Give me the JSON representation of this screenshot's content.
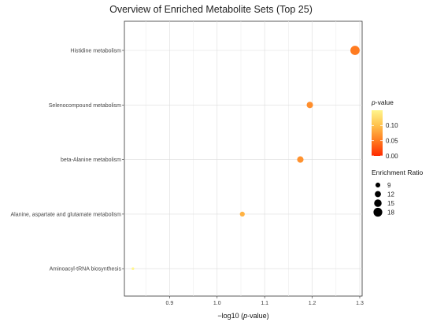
{
  "chart_data": {
    "type": "scatter",
    "title": "Overview of Enriched Metabolite Sets (Top 25)",
    "xlabel_prefix": "−log10 (",
    "xlabel_italic": "p",
    "xlabel_suffix": "-value)",
    "xlim": [
      0.805,
      1.305
    ],
    "xticks": [
      0.9,
      1.0,
      1.1,
      1.2,
      1.3
    ],
    "xtick_labels": [
      "0.9",
      "1.0",
      "1.1",
      "1.2",
      "1.3"
    ],
    "grid": true,
    "categories": [
      "Histidine metabolism",
      "Selenocompound metabolism",
      "beta-Alanine metabolism",
      "Alanine, aspartate and glutamate metabolism",
      "Aminoacyl-tRNA biosynthesis"
    ],
    "points": [
      {
        "category": "Histidine metabolism",
        "x": 1.29,
        "p_value": 0.051,
        "enrichment_ratio": 19
      },
      {
        "category": "Selenocompound metabolism",
        "x": 1.195,
        "p_value": 0.064,
        "enrichment_ratio": 12.5
      },
      {
        "category": "beta-Alanine metabolism",
        "x": 1.175,
        "p_value": 0.067,
        "enrichment_ratio": 12.5
      },
      {
        "category": "Alanine, aspartate and glutamate metabolism",
        "x": 1.053,
        "p_value": 0.089,
        "enrichment_ratio": 9.2
      },
      {
        "category": "Aminoacyl-tRNA biosynthesis",
        "x": 0.823,
        "p_value": 0.15,
        "enrichment_ratio": 4
      }
    ],
    "color_legend": {
      "title_italic": "p",
      "title_suffix": "-value",
      "range": [
        0.0,
        0.15
      ],
      "ticks": [
        0.0,
        0.05,
        0.1
      ],
      "tick_labels": [
        "0.00",
        "0.05",
        "0.10"
      ],
      "colors": [
        "#ff2a00",
        "#ff7a1f",
        "#ffc24d",
        "#fff58c"
      ]
    },
    "size_legend": {
      "title": "Enrichment Ratio",
      "values": [
        9,
        12,
        15,
        18
      ],
      "labels": [
        "9",
        "12",
        "15",
        "18"
      ]
    },
    "legend_position": "right"
  }
}
